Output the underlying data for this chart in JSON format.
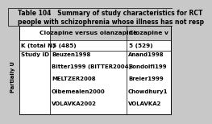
{
  "title_line1": "Table 104   Summary of study characteristics for RCT",
  "title_line2": "people with schizophrenia whose illness has not resp",
  "col1_header": "Clozapine versus olanzapine",
  "col2_header": "Clozapine v",
  "row1_label": "K (total N)",
  "row1_col1": "5 (485)",
  "row1_col2": "5 (529)",
  "row2_label": "Study ID",
  "row2_col1": [
    "Beuzen1998",
    "Bitter1999 (BITTER2004)",
    "MELTZER2008",
    "Olbemealen2000",
    "VOLAVKA2002"
  ],
  "row2_col2": [
    "Anand1998",
    "Bondolfi199",
    "Breier1999",
    "Chowdhury1",
    "VOLAVKA2"
  ],
  "side_label": "Partially U",
  "bg_color": "#c8c8c8",
  "table_bg": "#ffffff",
  "header_bg": "#c8c8c8",
  "title_fontsize": 5.5,
  "cell_fontsize": 5.2,
  "header_fontsize": 5.4,
  "side_fontsize": 4.8
}
